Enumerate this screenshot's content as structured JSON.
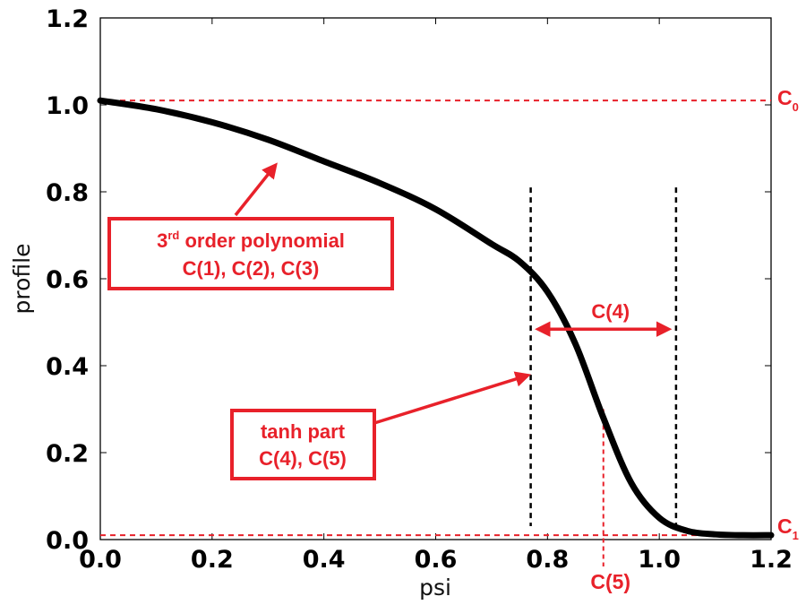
{
  "chart_data": {
    "type": "line",
    "xlabel": "psi",
    "ylabel": "profile",
    "xlim": [
      0.0,
      1.2
    ],
    "ylim": [
      0.0,
      1.2
    ],
    "x_ticks": [
      "0.0",
      "0.2",
      "0.4",
      "0.6",
      "0.8",
      "1.0",
      "1.2"
    ],
    "y_ticks": [
      "0.0",
      "0.2",
      "0.4",
      "0.6",
      "0.8",
      "1.0",
      "1.2"
    ],
    "grid": false,
    "series": [
      {
        "x": [
          0.0,
          0.1,
          0.2,
          0.3,
          0.4,
          0.5,
          0.6,
          0.7,
          0.75,
          0.8,
          0.85,
          0.9,
          0.95,
          1.0,
          1.05,
          1.1,
          1.15,
          1.2
        ],
        "y": [
          1.01,
          0.99,
          0.96,
          0.92,
          0.87,
          0.82,
          0.76,
          0.68,
          0.64,
          0.57,
          0.45,
          0.28,
          0.13,
          0.05,
          0.02,
          0.012,
          0.01,
          0.01
        ],
        "color": "#000000"
      }
    ],
    "reference_lines": {
      "c0": {
        "label": "C",
        "subscript": "0",
        "y": 1.01,
        "color": "#e8212a"
      },
      "c1": {
        "label": "C",
        "subscript": "1",
        "y": 0.01,
        "color": "#e8212a"
      },
      "c5": {
        "label": "C(5)",
        "x": 0.9,
        "color": "#e8212a"
      },
      "width_left_x": 0.77,
      "width_right_x": 1.03,
      "width_y_top": 0.81
    },
    "annotations": {
      "polynomial_box": {
        "line1_sup_prefix": "3",
        "line1_sup": "rd",
        "line1_rest": " order polynomial",
        "line2": "C(1), C(2), C(3)",
        "arrow_to": [
          0.32,
          0.87
        ]
      },
      "tanh_box": {
        "line1": "tanh part",
        "line2": "C(4), C(5)",
        "arrow_to": [
          0.77,
          0.38
        ]
      },
      "width_arrow": {
        "label": "C(4)",
        "y": 0.48,
        "x_from": 0.77,
        "x_to": 1.03
      }
    }
  }
}
